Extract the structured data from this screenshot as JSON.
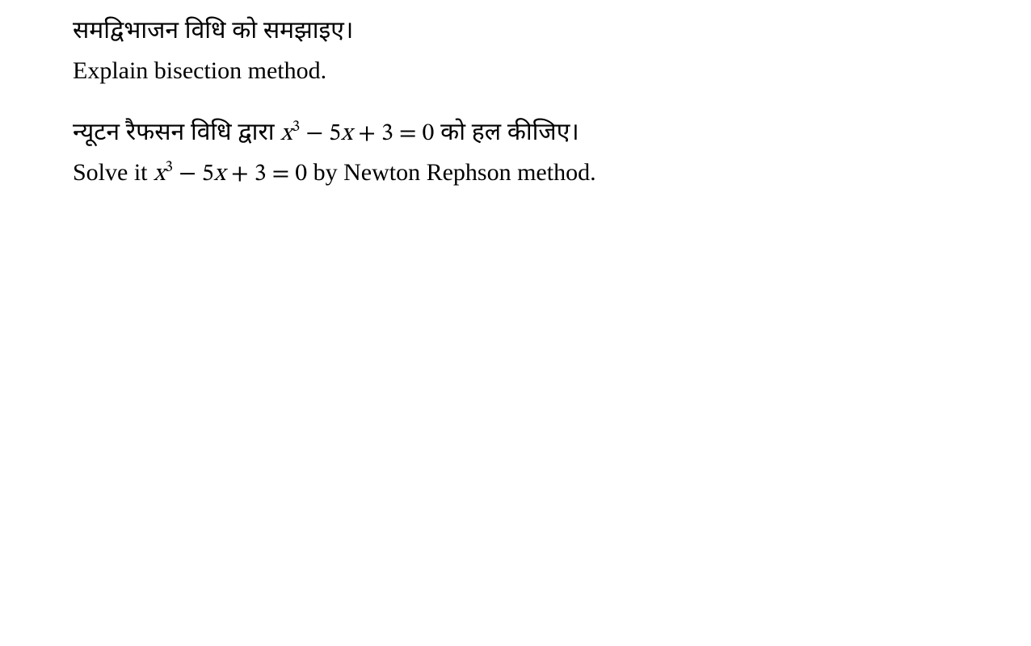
{
  "page": {
    "background_color": "#ffffff",
    "text_color": "#000000",
    "font_family_latin": "Times New Roman",
    "font_family_devanagari": "Mangal",
    "font_size_pt": 22
  },
  "questions": [
    {
      "hindi": "समद्विभाजन विधि को समझाइए।",
      "english": "Explain bisection method."
    },
    {
      "hindi_prefix": "न्यूटन रैफसन विधि द्वारा ",
      "equation": {
        "variable": "x",
        "exponent": "3",
        "term2_coeff": "5",
        "term2_var": "x",
        "constant": "3",
        "rhs": "0",
        "display": "x³ − 5x + 3 = 0"
      },
      "hindi_suffix": " को हल कीजिए।",
      "english_prefix": "Solve it ",
      "english_suffix": " by Newton Rephson method."
    }
  ]
}
